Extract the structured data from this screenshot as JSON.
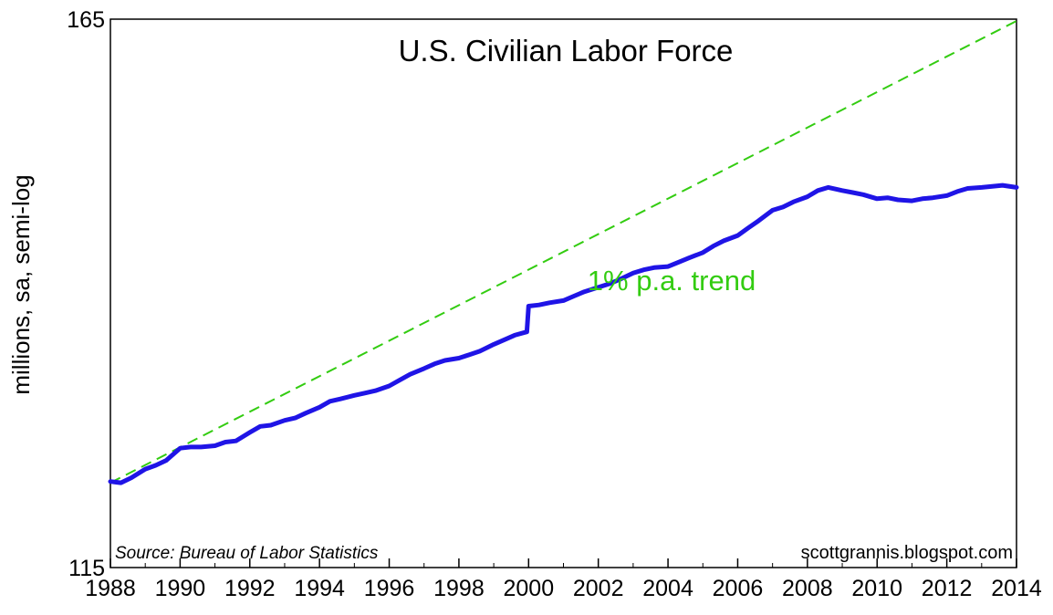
{
  "chart_data": {
    "type": "line",
    "title": "U.S. Civilian Labor Force",
    "ylabel": "millions, sa, semi-log",
    "xlabel": "",
    "yscale": "log",
    "ylim": [
      115,
      165
    ],
    "xlim": [
      1988,
      2014
    ],
    "y_tick_labels": [
      "115",
      "165"
    ],
    "x_tick_labels": [
      "1988",
      "1990",
      "1992",
      "1994",
      "1996",
      "1998",
      "2000",
      "2002",
      "2004",
      "2006",
      "2008",
      "2010",
      "2012",
      "2014"
    ],
    "grid": false,
    "annotations": {
      "trend_label": "1% p.a. trend",
      "source": "Source:  Bureau of Labor Statistics",
      "credit": "scottgrannis.blogspot.com"
    },
    "colors": {
      "series": "#1f14e6",
      "trend": "#33cc11",
      "axis": "#000000"
    },
    "series": [
      {
        "style": "solid",
        "x": [
          1988.0,
          1988.3,
          1988.6,
          1989.0,
          1989.3,
          1989.6,
          1990.0,
          1990.3,
          1990.6,
          1991.0,
          1991.3,
          1991.6,
          1992.0,
          1992.3,
          1992.6,
          1993.0,
          1993.3,
          1993.6,
          1994.0,
          1994.3,
          1994.6,
          1995.0,
          1995.3,
          1995.6,
          1996.0,
          1996.3,
          1996.6,
          1997.0,
          1997.3,
          1997.6,
          1998.0,
          1998.3,
          1998.6,
          1999.0,
          1999.3,
          1999.6,
          1999.95,
          2000.0,
          2000.3,
          2000.6,
          2001.0,
          2001.3,
          2001.6,
          2002.0,
          2002.3,
          2002.6,
          2003.0,
          2003.3,
          2003.6,
          2004.0,
          2004.3,
          2004.6,
          2005.0,
          2005.3,
          2005.6,
          2006.0,
          2006.3,
          2006.6,
          2007.0,
          2007.3,
          2007.6,
          2008.0,
          2008.3,
          2008.6,
          2009.0,
          2009.3,
          2009.6,
          2010.0,
          2010.3,
          2010.6,
          2011.0,
          2011.3,
          2011.6,
          2012.0,
          2012.3,
          2012.6,
          2013.0,
          2013.3,
          2013.6,
          2014.0
        ],
        "values": [
          121.7,
          121.6,
          122.0,
          122.7,
          123.0,
          123.4,
          124.4,
          124.5,
          124.5,
          124.6,
          124.9,
          125.0,
          125.7,
          126.2,
          126.3,
          126.7,
          126.9,
          127.3,
          127.8,
          128.3,
          128.5,
          128.8,
          129.0,
          129.2,
          129.6,
          130.1,
          130.6,
          131.1,
          131.5,
          131.8,
          132.0,
          132.3,
          132.6,
          133.2,
          133.6,
          134.0,
          134.3,
          136.6,
          136.7,
          136.9,
          137.1,
          137.5,
          137.9,
          138.3,
          138.6,
          139.0,
          139.6,
          139.9,
          140.1,
          140.2,
          140.6,
          141.0,
          141.5,
          142.1,
          142.6,
          143.1,
          143.8,
          144.5,
          145.5,
          145.8,
          146.3,
          146.8,
          147.4,
          147.7,
          147.4,
          147.2,
          147.0,
          146.6,
          146.7,
          146.5,
          146.4,
          146.6,
          146.7,
          146.9,
          147.3,
          147.6,
          147.7,
          147.8,
          147.9,
          147.7
        ]
      },
      {
        "name": "1% p.a. trend",
        "style": "dashed",
        "x": [
          1988,
          2014
        ],
        "values": [
          121.6,
          164.8
        ]
      }
    ]
  }
}
